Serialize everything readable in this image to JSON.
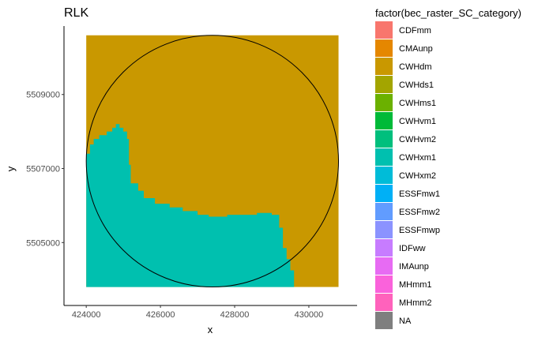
{
  "chart_data": {
    "type": "heatmap",
    "title": "RLK",
    "xlabel": "x",
    "ylabel": "y",
    "xlim": [
      423400,
      431300
    ],
    "ylim": [
      5503300,
      5510850
    ],
    "x_ticks": [
      424000,
      426000,
      428000,
      430000
    ],
    "x_tick_labels": [
      "424000",
      "426000",
      "428000",
      "430000"
    ],
    "y_ticks": [
      5505000,
      5507000,
      5509000
    ],
    "y_tick_labels": [
      "5505000",
      "5507000",
      "5509000"
    ],
    "grid": false,
    "legend_title": "factor(bec_raster_SC_category)",
    "legend_position": "right",
    "legend": [
      {
        "label": "CDFmm",
        "color": "#F8766D"
      },
      {
        "label": "CMAunp",
        "color": "#E58700"
      },
      {
        "label": "CWHdm",
        "color": "#C99800"
      },
      {
        "label": "CWHds1",
        "color": "#A3A500"
      },
      {
        "label": "CWHms1",
        "color": "#6BB100"
      },
      {
        "label": "CWHvm1",
        "color": "#00BA38"
      },
      {
        "label": "CWHvm2",
        "color": "#00BF7D"
      },
      {
        "label": "CWHxm1",
        "color": "#00C0AF"
      },
      {
        "label": "CWHxm2",
        "color": "#00BCD8"
      },
      {
        "label": "ESSFmw1",
        "color": "#00B0F6"
      },
      {
        "label": "ESSFmw2",
        "color": "#619CFF"
      },
      {
        "label": "ESSFmwp",
        "color": "#8B93FF"
      },
      {
        "label": "IDFww",
        "color": "#C77CFF"
      },
      {
        "label": "IMAunp",
        "color": "#E76BF3"
      },
      {
        "label": "MHmm1",
        "color": "#FA62DB"
      },
      {
        "label": "MHmm2",
        "color": "#FF62BC"
      },
      {
        "label": "NA",
        "color": "#7F7F7F"
      }
    ],
    "raster_extent": {
      "x": [
        424000,
        430800
      ],
      "y": [
        5503800,
        5510600
      ]
    },
    "raster_background_category": "CWHdm",
    "raster_region_category": "CWHxm1",
    "region_boundary": [
      [
        424000,
        5503800
      ],
      [
        429600,
        5503800
      ],
      [
        429600,
        5504250
      ],
      [
        429500,
        5504250
      ],
      [
        429500,
        5504550
      ],
      [
        429400,
        5504550
      ],
      [
        429400,
        5504850
      ],
      [
        429300,
        5504850
      ],
      [
        429300,
        5505400
      ],
      [
        429200,
        5505400
      ],
      [
        429200,
        5505750
      ],
      [
        429000,
        5505750
      ],
      [
        429000,
        5505800
      ],
      [
        428600,
        5505800
      ],
      [
        428600,
        5505750
      ],
      [
        427800,
        5505750
      ],
      [
        427800,
        5505700
      ],
      [
        427300,
        5505700
      ],
      [
        427300,
        5505750
      ],
      [
        427000,
        5505750
      ],
      [
        427000,
        5505850
      ],
      [
        426600,
        5505850
      ],
      [
        426600,
        5505950
      ],
      [
        426250,
        5505950
      ],
      [
        426250,
        5506050
      ],
      [
        425850,
        5506050
      ],
      [
        425850,
        5506200
      ],
      [
        425550,
        5506200
      ],
      [
        425550,
        5506400
      ],
      [
        425400,
        5506400
      ],
      [
        425400,
        5506600
      ],
      [
        425200,
        5506600
      ],
      [
        425200,
        5507100
      ],
      [
        425150,
        5507100
      ],
      [
        425150,
        5507800
      ],
      [
        425100,
        5507800
      ],
      [
        425100,
        5508000
      ],
      [
        425000,
        5508000
      ],
      [
        425000,
        5508100
      ],
      [
        424900,
        5508100
      ],
      [
        424900,
        5508200
      ],
      [
        424800,
        5508200
      ],
      [
        424800,
        5508100
      ],
      [
        424700,
        5508100
      ],
      [
        424700,
        5508000
      ],
      [
        424550,
        5508000
      ],
      [
        424550,
        5507900
      ],
      [
        424350,
        5507900
      ],
      [
        424350,
        5507800
      ],
      [
        424200,
        5507800
      ],
      [
        424200,
        5507650
      ],
      [
        424100,
        5507650
      ],
      [
        424100,
        5507400
      ],
      [
        424000,
        5507400
      ]
    ],
    "circle": {
      "center": [
        427400,
        5507200
      ],
      "radius": 3400
    }
  }
}
